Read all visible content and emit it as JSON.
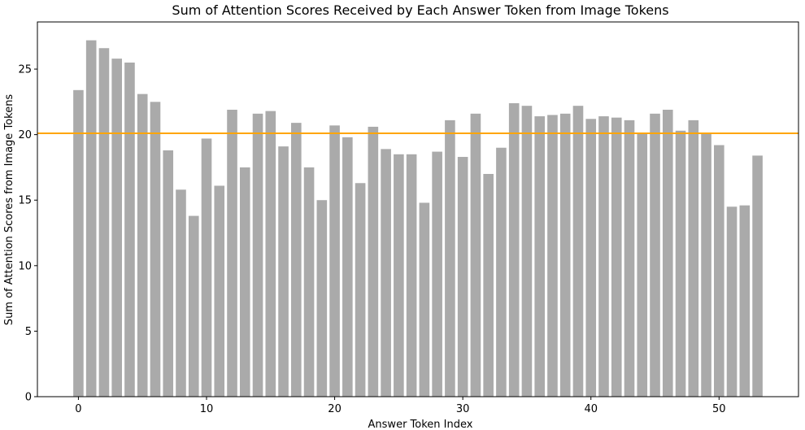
{
  "chart_data": {
    "type": "bar",
    "title": "Sum of Attention Scores Received by Each Answer Token from Image Tokens",
    "xlabel": "Answer Token Index",
    "ylabel": "Sum of Attention Scores from Image Tokens",
    "x": [
      0,
      1,
      2,
      3,
      4,
      5,
      6,
      7,
      8,
      9,
      10,
      11,
      12,
      13,
      14,
      15,
      16,
      17,
      18,
      19,
      20,
      21,
      22,
      23,
      24,
      25,
      26,
      27,
      28,
      29,
      30,
      31,
      32,
      33,
      34,
      35,
      36,
      37,
      38,
      39,
      40,
      41,
      42,
      43,
      44,
      45,
      46,
      47,
      48,
      49,
      50,
      51,
      52,
      53
    ],
    "values": [
      23.4,
      27.2,
      26.6,
      25.8,
      25.5,
      23.1,
      22.5,
      18.8,
      15.8,
      13.8,
      19.7,
      16.1,
      21.9,
      17.5,
      21.6,
      21.8,
      19.1,
      20.9,
      17.5,
      15.0,
      20.7,
      19.8,
      16.3,
      20.6,
      18.9,
      18.5,
      18.5,
      14.8,
      18.7,
      21.1,
      18.3,
      21.6,
      17.0,
      19.0,
      22.4,
      22.2,
      21.4,
      21.5,
      21.6,
      22.2,
      21.2,
      21.4,
      21.3,
      21.1,
      20.1,
      21.6,
      21.9,
      20.3,
      21.1,
      20.1,
      19.2,
      14.5,
      14.6,
      18.4
    ],
    "mean_line": 20.1,
    "xlim": [
      -3.2,
      56.2
    ],
    "ylim": [
      0,
      28.6
    ],
    "xticks": [
      0,
      10,
      20,
      30,
      40,
      50
    ],
    "yticks": [
      0,
      5,
      10,
      15,
      20,
      25
    ],
    "grid": false,
    "bar_color": "#aaaaaa",
    "line_color": "#ffa500"
  }
}
